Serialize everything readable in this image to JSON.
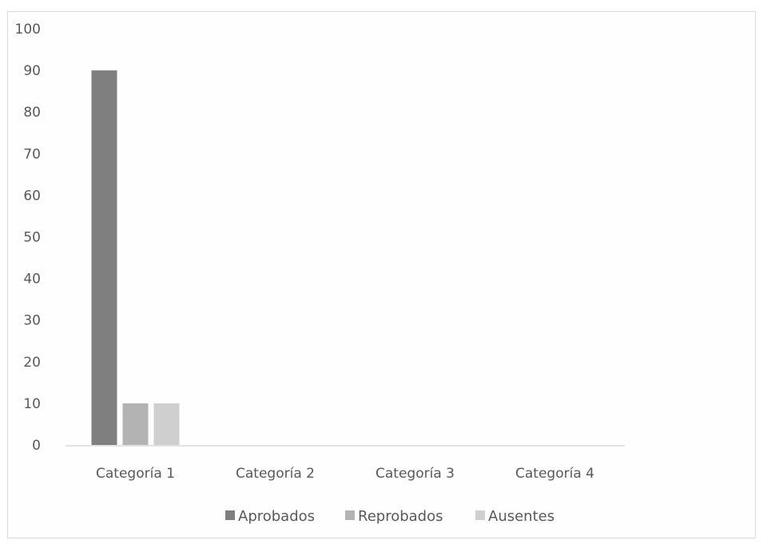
{
  "chart_data": {
    "type": "bar",
    "title": "",
    "xlabel": "",
    "ylabel": "",
    "ylim": [
      0,
      100
    ],
    "yticks": [
      0,
      10,
      20,
      30,
      40,
      50,
      60,
      70,
      80,
      90,
      100
    ],
    "categories": [
      "Categoría 1",
      "Categoría 2",
      "Categoría 3",
      "Categoría 4"
    ],
    "series": [
      {
        "name": "Aprobados",
        "values": [
          90,
          0,
          0,
          0
        ],
        "color": "#7f7f7f"
      },
      {
        "name": "Reprobados",
        "values": [
          10,
          0,
          0,
          0
        ],
        "color": "#b3b3b3"
      },
      {
        "name": "Ausentes",
        "values": [
          10,
          0,
          0,
          0
        ],
        "color": "#cfcfcf"
      }
    ],
    "grid": false,
    "legend": "bottom"
  }
}
